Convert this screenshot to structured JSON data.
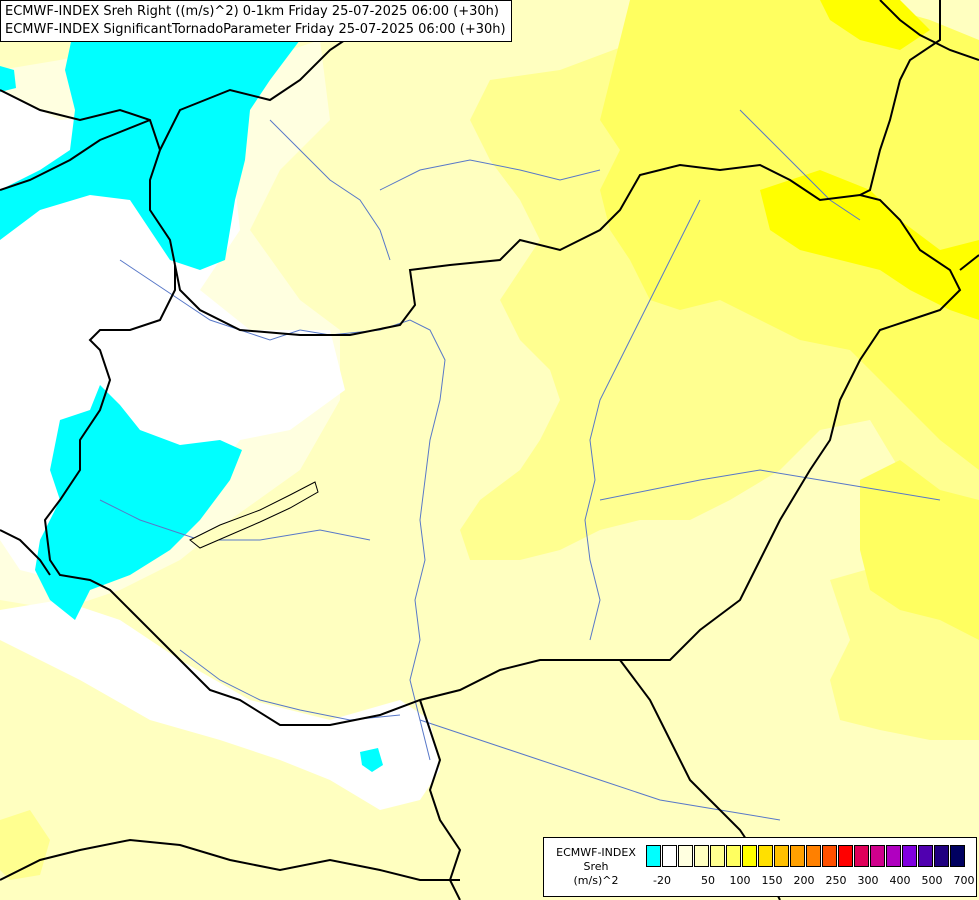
{
  "title": {
    "line1": "ECMWF-INDEX Sreh Right ((m/s)^2) 0-1km Friday 25-07-2025 06:00 (+30h)",
    "line2": "ECMWF-INDEX SignificantTornadoParameter Friday 25-07-2025 06:00 (+30h)"
  },
  "legend": {
    "line1": "ECMWF-INDEX",
    "line2": "Sreh",
    "line3": "(m/s)^2",
    "colors": [
      "#00ffff",
      "#ffffff",
      "#ffffe0",
      "#ffffc0",
      "#ffff90",
      "#ffff60",
      "#ffff00",
      "#ffe000",
      "#ffc000",
      "#ffa000",
      "#ff8000",
      "#ff5000",
      "#ff0000",
      "#e0005a",
      "#d0008c",
      "#b000c0",
      "#8000e0",
      "#5000b0",
      "#200080",
      "#000060"
    ],
    "ticks": [
      "-20",
      "50",
      "100",
      "150",
      "200",
      "250",
      "300",
      "400",
      "500",
      "700"
    ]
  },
  "map": {
    "colors": {
      "background": "#ffffc0",
      "pale": "#ffffe0",
      "white": "#ffffff",
      "cyan": "#00ffff",
      "light_yellow": "#ffff90",
      "yellow": "#ffff60",
      "strong_yellow": "#ffff00",
      "river": "#5878c8",
      "border": "#000000"
    }
  }
}
